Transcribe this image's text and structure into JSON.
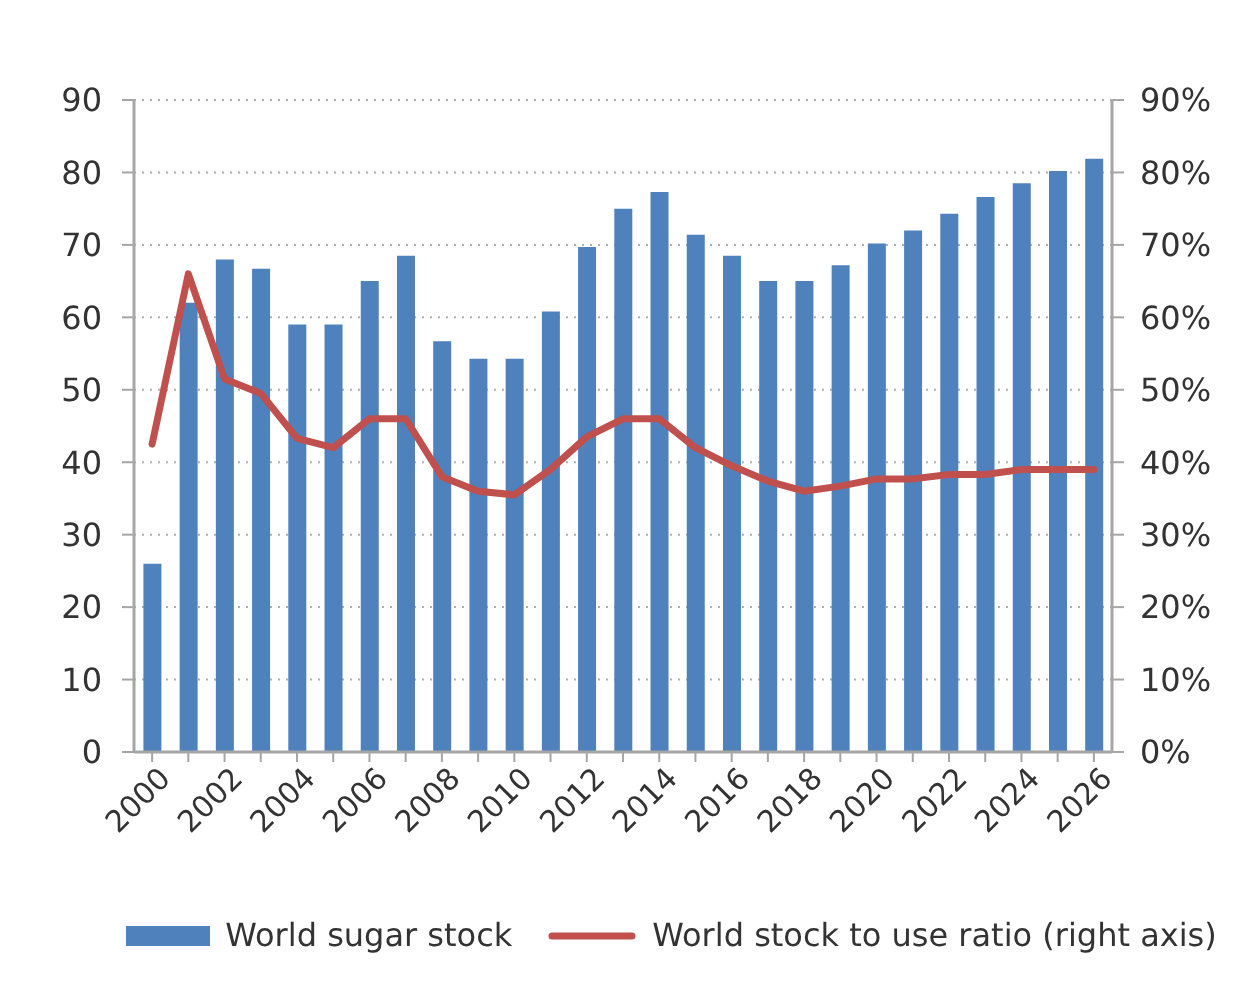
{
  "chart_data": {
    "type": "bar",
    "categories": [
      "2000",
      null,
      "2002",
      null,
      "2004",
      null,
      "2006",
      null,
      "2008",
      null,
      "2010",
      null,
      "2012",
      null,
      "2014",
      null,
      "2016",
      null,
      "2018",
      null,
      "2020",
      null,
      "2022",
      null,
      "2024",
      null,
      "2026"
    ],
    "series": [
      {
        "name": "World sugar stock",
        "color": "#4f81bd",
        "values": [
          26,
          62,
          68,
          66.7,
          59,
          59,
          65,
          68.5,
          56.7,
          54.3,
          54.3,
          60.8,
          69.7,
          75,
          77.3,
          71.4,
          68.5,
          65,
          65,
          67.2,
          70.2,
          72,
          74.3,
          76.6,
          78.5,
          80.2,
          81.9
        ]
      },
      {
        "name": "World stock to use ratio (right axis)",
        "type": "line",
        "axis": "y2",
        "color": "#c0504d",
        "values": [
          42.5,
          66,
          51.5,
          49.5,
          43.3,
          42,
          46,
          46,
          38,
          36,
          35.5,
          39,
          43.5,
          46,
          46,
          42,
          39.5,
          37.4,
          36,
          36.7,
          37.7,
          37.7,
          38.3,
          38.3,
          39,
          39,
          39
        ]
      }
    ],
    "ylim": [
      0,
      90
    ],
    "yticks": [
      0,
      10,
      20,
      30,
      40,
      50,
      60,
      70,
      80,
      90
    ],
    "y2lim": [
      0,
      90
    ],
    "y2ticks": [
      {
        "value": 0,
        "label": "0%"
      },
      {
        "value": 10,
        "label": "10%"
      },
      {
        "value": 20,
        "label": "20%"
      },
      {
        "value": 30,
        "label": "30%"
      },
      {
        "value": 40,
        "label": "40%"
      },
      {
        "value": 50,
        "label": "50%"
      },
      {
        "value": 60,
        "label": "60%"
      },
      {
        "value": 70,
        "label": "70%"
      },
      {
        "value": 80,
        "label": "80%"
      },
      {
        "value": 90,
        "label": "90%"
      }
    ],
    "grid": "y",
    "legend": "bottom"
  }
}
